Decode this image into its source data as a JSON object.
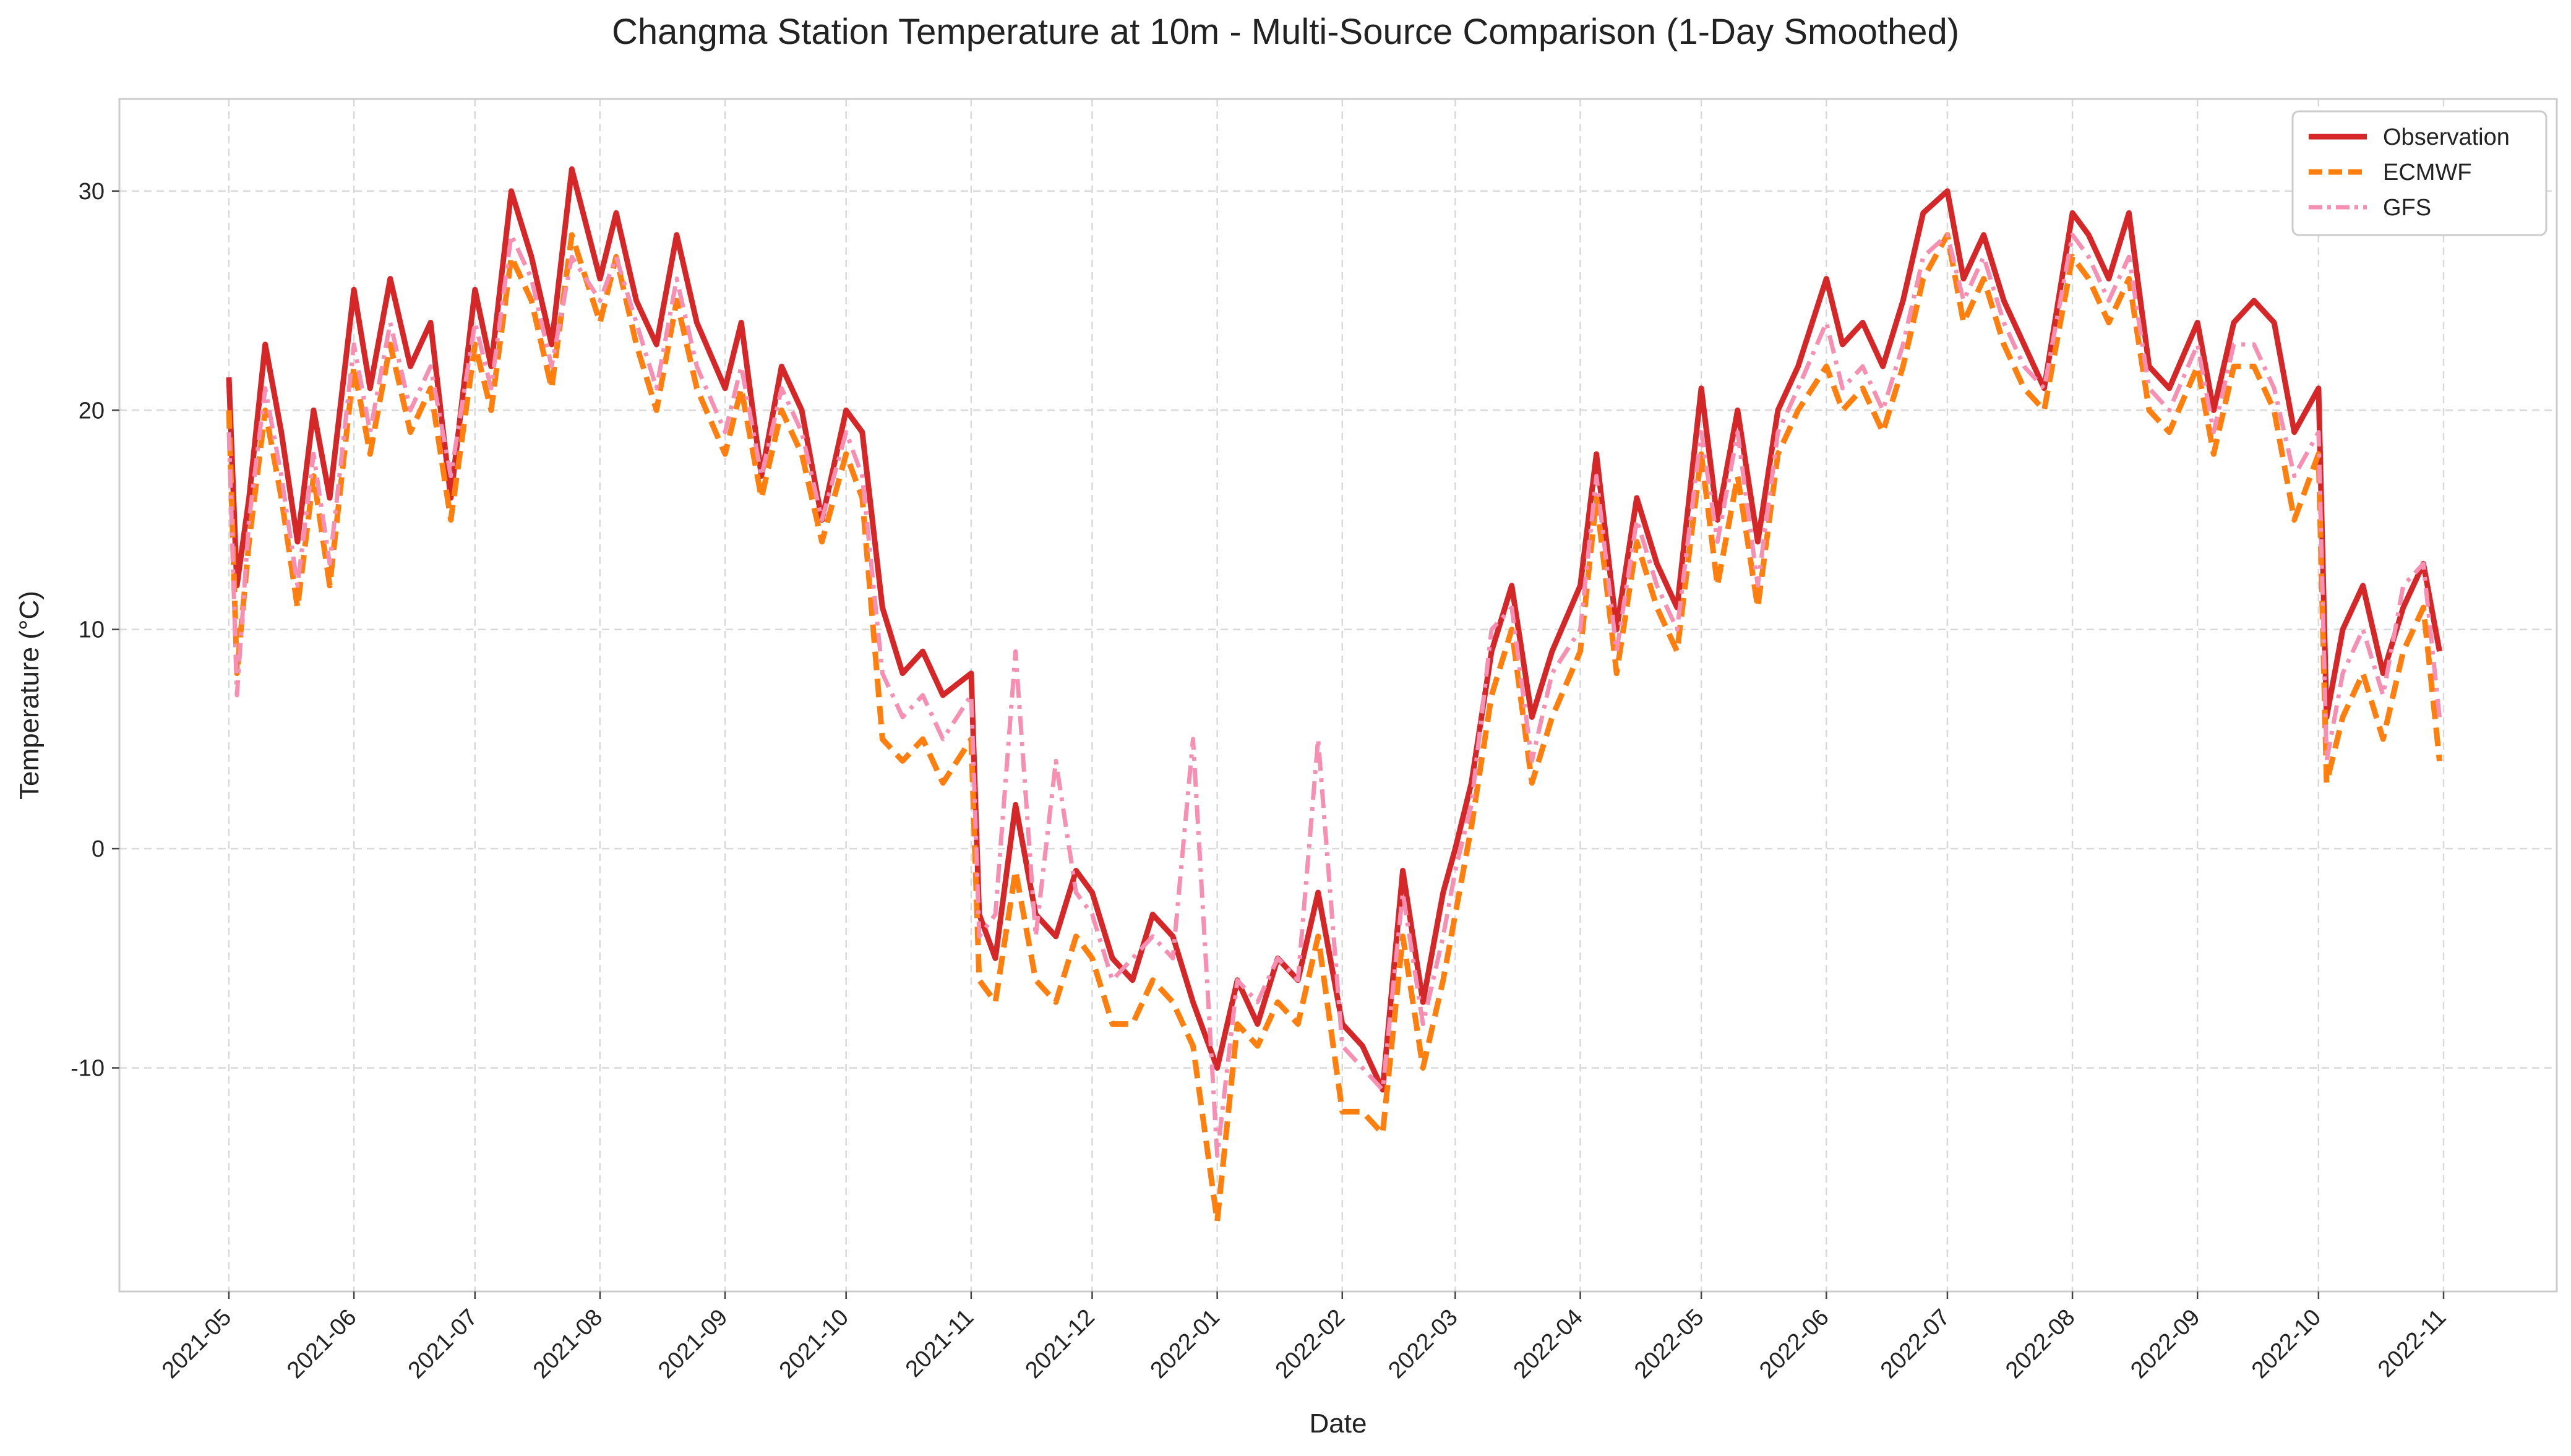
{
  "chart_data": {
    "type": "line",
    "title": "Changma Station Temperature at 10m - Multi-Source Comparison (1-Day Smoothed)",
    "xlabel": "Date",
    "ylabel": "Temperature (°C)",
    "ylim": [
      -20.2,
      34.2
    ],
    "y_ticks": [
      30,
      20,
      10,
      0,
      -10
    ],
    "x_ticks": [
      "2021-05",
      "2021-06",
      "2021-07",
      "2021-08",
      "2021-09",
      "2021-10",
      "2021-11",
      "2021-12",
      "2022-01",
      "2022-02",
      "2022-03",
      "2022-04",
      "2022-05",
      "2022-06",
      "2022-07",
      "2022-08",
      "2022-09",
      "2022-10",
      "2022-11"
    ],
    "grid": true,
    "legend_position": "top-right",
    "series": [
      {
        "name": "Observation",
        "color": "#d62728",
        "dash": "solid",
        "x": [
          "2021-05-01",
          "2021-05-03",
          "2021-05-06",
          "2021-05-10",
          "2021-05-14",
          "2021-05-18",
          "2021-05-22",
          "2021-05-26",
          "2021-06-01",
          "2021-06-05",
          "2021-06-10",
          "2021-06-15",
          "2021-06-20",
          "2021-06-25",
          "2021-07-01",
          "2021-07-05",
          "2021-07-10",
          "2021-07-15",
          "2021-07-20",
          "2021-07-25",
          "2021-08-01",
          "2021-08-05",
          "2021-08-10",
          "2021-08-15",
          "2021-08-20",
          "2021-08-25",
          "2021-09-01",
          "2021-09-05",
          "2021-09-10",
          "2021-09-15",
          "2021-09-20",
          "2021-09-25",
          "2021-10-01",
          "2021-10-05",
          "2021-10-10",
          "2021-10-15",
          "2021-10-20",
          "2021-10-25",
          "2021-11-01",
          "2021-11-03",
          "2021-11-07",
          "2021-11-12",
          "2021-11-17",
          "2021-11-22",
          "2021-11-27",
          "2021-12-01",
          "2021-12-06",
          "2021-12-11",
          "2021-12-16",
          "2021-12-21",
          "2021-12-26",
          "2022-01-01",
          "2022-01-06",
          "2022-01-11",
          "2022-01-16",
          "2022-01-21",
          "2022-01-26",
          "2022-02-01",
          "2022-02-06",
          "2022-02-11",
          "2022-02-16",
          "2022-02-21",
          "2022-02-26",
          "2022-03-01",
          "2022-03-05",
          "2022-03-10",
          "2022-03-15",
          "2022-03-20",
          "2022-03-25",
          "2022-04-01",
          "2022-04-05",
          "2022-04-10",
          "2022-04-15",
          "2022-04-20",
          "2022-04-25",
          "2022-05-01",
          "2022-05-05",
          "2022-05-10",
          "2022-05-15",
          "2022-05-20",
          "2022-05-25",
          "2022-06-01",
          "2022-06-05",
          "2022-06-10",
          "2022-06-15",
          "2022-06-20",
          "2022-06-25",
          "2022-07-01",
          "2022-07-05",
          "2022-07-10",
          "2022-07-15",
          "2022-07-20",
          "2022-07-25",
          "2022-08-01",
          "2022-08-05",
          "2022-08-10",
          "2022-08-15",
          "2022-08-20",
          "2022-08-25",
          "2022-09-01",
          "2022-09-05",
          "2022-09-10",
          "2022-09-15",
          "2022-09-20",
          "2022-09-25",
          "2022-10-01",
          "2022-10-03",
          "2022-10-07",
          "2022-10-12",
          "2022-10-17",
          "2022-10-22",
          "2022-10-27",
          "2022-10-31"
        ],
        "values": [
          21.5,
          12,
          16,
          23,
          19,
          14,
          20,
          16,
          25.5,
          21,
          26,
          22,
          24,
          16,
          25.5,
          22,
          30,
          27,
          23,
          31,
          26,
          29,
          25,
          23,
          28,
          24,
          21,
          24,
          17,
          22,
          20,
          15,
          20,
          19,
          11,
          8,
          9,
          7,
          8,
          -3,
          -5,
          2,
          -3,
          -4,
          -1,
          -2,
          -5,
          -6,
          -3,
          -4,
          -7,
          -10,
          -6,
          -8,
          -5,
          -6,
          -2,
          -8,
          -9,
          -11,
          -1,
          -7,
          -2,
          0,
          3,
          9,
          12,
          6,
          9,
          12,
          18,
          10,
          16,
          13,
          11,
          21,
          15,
          20,
          14,
          20,
          22,
          26,
          23,
          24,
          22,
          25,
          29,
          30,
          26,
          28,
          25,
          23,
          21,
          29,
          28,
          26,
          29,
          22,
          21,
          24,
          20,
          24,
          25,
          24,
          19,
          21,
          6,
          10,
          12,
          8,
          11,
          13,
          9
        ]
      },
      {
        "name": "ECMWF",
        "color": "#ff7f0e",
        "dash": "dashed",
        "x": [
          "2021-05-01",
          "2021-05-03",
          "2021-05-06",
          "2021-05-10",
          "2021-05-14",
          "2021-05-18",
          "2021-05-22",
          "2021-05-26",
          "2021-06-01",
          "2021-06-05",
          "2021-06-10",
          "2021-06-15",
          "2021-06-20",
          "2021-06-25",
          "2021-07-01",
          "2021-07-05",
          "2021-07-10",
          "2021-07-15",
          "2021-07-20",
          "2021-07-25",
          "2021-08-01",
          "2021-08-05",
          "2021-08-10",
          "2021-08-15",
          "2021-08-20",
          "2021-08-25",
          "2021-09-01",
          "2021-09-05",
          "2021-09-10",
          "2021-09-15",
          "2021-09-20",
          "2021-09-25",
          "2021-10-01",
          "2021-10-05",
          "2021-10-10",
          "2021-10-15",
          "2021-10-20",
          "2021-10-25",
          "2021-11-01",
          "2021-11-03",
          "2021-11-07",
          "2021-11-12",
          "2021-11-17",
          "2021-11-22",
          "2021-11-27",
          "2021-12-01",
          "2021-12-06",
          "2021-12-11",
          "2021-12-16",
          "2021-12-21",
          "2021-12-26",
          "2022-01-01",
          "2022-01-06",
          "2022-01-11",
          "2022-01-16",
          "2022-01-21",
          "2022-01-26",
          "2022-02-01",
          "2022-02-06",
          "2022-02-11",
          "2022-02-16",
          "2022-02-21",
          "2022-02-26",
          "2022-03-01",
          "2022-03-05",
          "2022-03-10",
          "2022-03-15",
          "2022-03-20",
          "2022-03-25",
          "2022-04-01",
          "2022-04-05",
          "2022-04-10",
          "2022-04-15",
          "2022-04-20",
          "2022-04-25",
          "2022-05-01",
          "2022-05-05",
          "2022-05-10",
          "2022-05-15",
          "2022-05-20",
          "2022-05-25",
          "2022-06-01",
          "2022-06-05",
          "2022-06-10",
          "2022-06-15",
          "2022-06-20",
          "2022-06-25",
          "2022-07-01",
          "2022-07-05",
          "2022-07-10",
          "2022-07-15",
          "2022-07-20",
          "2022-07-25",
          "2022-08-01",
          "2022-08-05",
          "2022-08-10",
          "2022-08-15",
          "2022-08-20",
          "2022-08-25",
          "2022-09-01",
          "2022-09-05",
          "2022-09-10",
          "2022-09-15",
          "2022-09-20",
          "2022-09-25",
          "2022-10-01",
          "2022-10-03",
          "2022-10-07",
          "2022-10-12",
          "2022-10-17",
          "2022-10-22",
          "2022-10-27",
          "2022-10-31"
        ],
        "values": [
          20,
          8,
          14,
          20,
          16,
          11,
          17,
          12,
          22,
          18,
          23,
          19,
          21,
          15,
          23,
          20,
          27,
          25,
          21,
          28,
          24,
          27,
          23,
          20,
          25,
          21,
          18,
          21,
          16,
          20,
          18,
          14,
          18,
          16,
          5,
          4,
          5,
          3,
          5,
          -6,
          -7,
          -1,
          -6,
          -7,
          -4,
          -5,
          -8,
          -8,
          -6,
          -7,
          -9,
          -17,
          -8,
          -9,
          -7,
          -8,
          -4,
          -12,
          -12,
          -13,
          -4,
          -10,
          -6,
          -3,
          1,
          7,
          10,
          3,
          6,
          9,
          16,
          8,
          14,
          11,
          9,
          18,
          12,
          17,
          11,
          18,
          20,
          22,
          20,
          21,
          19,
          22,
          26,
          28,
          24,
          26,
          23,
          21,
          20,
          27,
          26,
          24,
          26,
          20,
          19,
          22,
          18,
          22,
          22,
          20,
          15,
          18,
          3,
          6,
          8,
          5,
          9,
          11,
          4
        ]
      },
      {
        "name": "GFS",
        "color": "#f78fb3",
        "dash": "dashdot",
        "x": [
          "2021-05-01",
          "2021-05-03",
          "2021-05-06",
          "2021-05-10",
          "2021-05-14",
          "2021-05-18",
          "2021-05-22",
          "2021-05-26",
          "2021-06-01",
          "2021-06-05",
          "2021-06-10",
          "2021-06-15",
          "2021-06-20",
          "2021-06-25",
          "2021-07-01",
          "2021-07-05",
          "2021-07-10",
          "2021-07-15",
          "2021-07-20",
          "2021-07-25",
          "2021-08-01",
          "2021-08-05",
          "2021-08-10",
          "2021-08-15",
          "2021-08-20",
          "2021-08-25",
          "2021-09-01",
          "2021-09-05",
          "2021-09-10",
          "2021-09-15",
          "2021-09-20",
          "2021-09-25",
          "2021-10-01",
          "2021-10-05",
          "2021-10-10",
          "2021-10-15",
          "2021-10-20",
          "2021-10-25",
          "2021-11-01",
          "2021-11-03",
          "2021-11-07",
          "2021-11-12",
          "2021-11-17",
          "2021-11-22",
          "2021-11-27",
          "2021-12-01",
          "2021-12-06",
          "2021-12-11",
          "2021-12-16",
          "2021-12-21",
          "2021-12-26",
          "2022-01-01",
          "2022-01-06",
          "2022-01-11",
          "2022-01-16",
          "2022-01-21",
          "2022-01-26",
          "2022-02-01",
          "2022-02-06",
          "2022-02-11",
          "2022-02-16",
          "2022-02-21",
          "2022-02-26",
          "2022-03-01",
          "2022-03-05",
          "2022-03-10",
          "2022-03-15",
          "2022-03-20",
          "2022-03-25",
          "2022-04-01",
          "2022-04-05",
          "2022-04-10",
          "2022-04-15",
          "2022-04-20",
          "2022-04-25",
          "2022-05-01",
          "2022-05-05",
          "2022-05-10",
          "2022-05-15",
          "2022-05-20",
          "2022-05-25",
          "2022-06-01",
          "2022-06-05",
          "2022-06-10",
          "2022-06-15",
          "2022-06-20",
          "2022-06-25",
          "2022-07-01",
          "2022-07-05",
          "2022-07-10",
          "2022-07-15",
          "2022-07-20",
          "2022-07-25",
          "2022-08-01",
          "2022-08-05",
          "2022-08-10",
          "2022-08-15",
          "2022-08-20",
          "2022-08-25",
          "2022-09-01",
          "2022-09-05",
          "2022-09-10",
          "2022-09-15",
          "2022-09-20",
          "2022-09-25",
          "2022-10-01",
          "2022-10-03",
          "2022-10-07",
          "2022-10-12",
          "2022-10-17",
          "2022-10-22",
          "2022-10-27",
          "2022-10-31"
        ],
        "values": [
          19,
          7,
          15,
          21,
          17,
          12,
          18,
          13,
          23,
          19,
          24,
          20,
          22,
          17,
          24,
          21,
          28,
          26,
          22,
          27,
          25,
          27,
          24,
          21,
          26,
          22,
          19,
          22,
          17,
          21,
          19,
          15,
          19,
          17,
          8,
          6,
          7,
          5,
          7,
          -4,
          -3,
          9,
          -4,
          4,
          -2,
          -3,
          -6,
          -5,
          -4,
          -5,
          5,
          -14,
          -6,
          -7,
          -5,
          -6,
          5,
          -9,
          -10,
          -11,
          -2,
          -8,
          -4,
          -1,
          2,
          10,
          11,
          4,
          8,
          10,
          17,
          9,
          15,
          12,
          10,
          19,
          14,
          19,
          12,
          19,
          21,
          24,
          21,
          22,
          20,
          23,
          27,
          28,
          25,
          27,
          24,
          22,
          21,
          28,
          27,
          25,
          27,
          21,
          20,
          23,
          19,
          23,
          23,
          21,
          17,
          19,
          4,
          8,
          10,
          7,
          12,
          13,
          6
        ]
      }
    ]
  }
}
